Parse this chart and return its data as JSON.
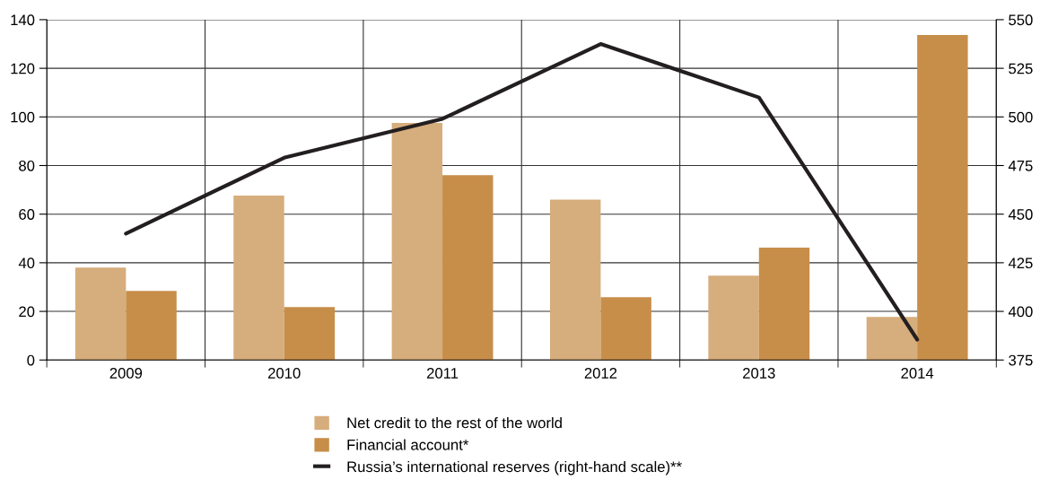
{
  "chart_data": {
    "type": "bar",
    "categories": [
      "2009",
      "2010",
      "2011",
      "2012",
      "2013",
      "2014"
    ],
    "series": [
      {
        "name": "Net credit to the rest of the world",
        "color": "#d6ad7c",
        "values": [
          38,
          67.6,
          97.5,
          66,
          34.7,
          17.7
        ]
      },
      {
        "name": "Financial account*",
        "color": "#c78e4a",
        "values": [
          28.4,
          21.8,
          76,
          25.8,
          46.2,
          133.7
        ]
      },
      {
        "name": "Russia’s international reserves (right-hand scale)**",
        "color": "#231f20",
        "type": "line",
        "axis": "y2",
        "values": [
          440,
          479,
          499,
          537.5,
          510,
          385.5
        ]
      }
    ],
    "ylim": [
      0,
      140
    ],
    "yticks": [
      0,
      20,
      40,
      60,
      80,
      100,
      120,
      140
    ],
    "y2lim": [
      375,
      550
    ],
    "y2ticks": [
      375,
      400,
      425,
      450,
      475,
      500,
      525,
      550
    ],
    "grid": true,
    "legend": "bottom",
    "marker": "none",
    "line_style": "solid"
  }
}
